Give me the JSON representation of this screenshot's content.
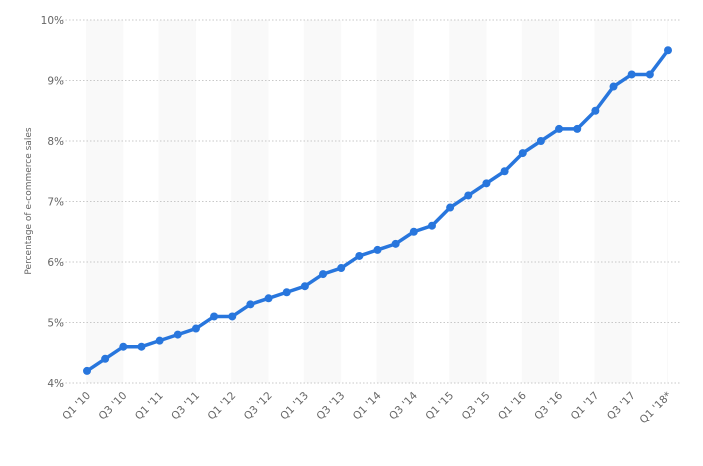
{
  "chart_data": {
    "type": "line",
    "title": "",
    "xlabel": "",
    "ylabel": "Percentage of e-commerce sales",
    "ylim": [
      4,
      10
    ],
    "yticks": [
      "4%",
      "5%",
      "6%",
      "7%",
      "8%",
      "9%",
      "10%"
    ],
    "grid": true,
    "legend": "none",
    "colors": {
      "line": "#2876dd",
      "grid": "#c8c8c8",
      "band": "#f9f9f9"
    },
    "x": [
      "Q1 '10",
      "Q2 '10",
      "Q3 '10",
      "Q4 '10",
      "Q1 '11",
      "Q2 '11",
      "Q3 '11",
      "Q4 '11",
      "Q1 '12",
      "Q2 '12",
      "Q3 '12",
      "Q4 '12",
      "Q1 '13",
      "Q2 '13",
      "Q3 '13",
      "Q4 '13",
      "Q1 '14",
      "Q2 '14",
      "Q3 '14",
      "Q4 '14",
      "Q1 '15",
      "Q2 '15",
      "Q3 '15",
      "Q4 '15",
      "Q1 '16",
      "Q2 '16",
      "Q3 '16",
      "Q4 '16",
      "Q1 '17",
      "Q2 '17",
      "Q3 '17",
      "Q4 '17",
      "Q1 '18*"
    ],
    "xtick_labels": [
      "Q1 '10",
      "Q3 '10",
      "Q1 '11",
      "Q3 '11",
      "Q1 '12",
      "Q3 '12",
      "Q1 '13",
      "Q3 '13",
      "Q1 '14",
      "Q3 '14",
      "Q1 '15",
      "Q3 '15",
      "Q1 '16",
      "Q3 '16",
      "Q1 '17",
      "Q3 '17",
      "Q1 '18*"
    ],
    "series": [
      {
        "values": [
          4.2,
          4.4,
          4.6,
          4.6,
          4.7,
          4.8,
          4.9,
          5.1,
          5.1,
          5.3,
          5.4,
          5.5,
          5.6,
          5.8,
          5.9,
          6.1,
          6.2,
          6.3,
          6.5,
          6.6,
          6.9,
          7.1,
          7.3,
          7.5,
          7.8,
          8.0,
          8.2,
          8.2,
          8.5,
          8.9,
          9.1,
          9.1,
          9.5
        ]
      }
    ]
  }
}
